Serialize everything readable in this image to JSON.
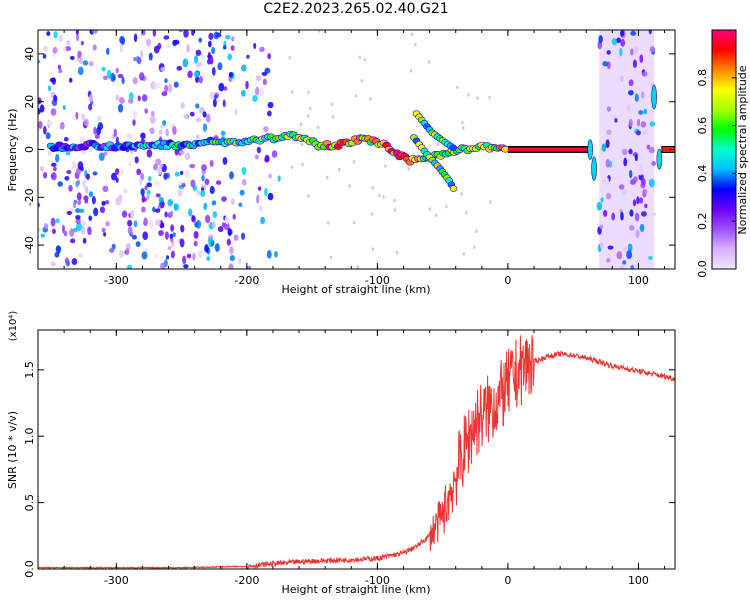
{
  "title": "C2E2.2023.265.02.40.G21",
  "chart_data": [
    {
      "type": "heatmap",
      "xlabel": "Height of straight line (km)",
      "ylabel": "Frequency (Hz)",
      "xlim": [
        -360,
        128
      ],
      "ylim": [
        -50,
        50
      ],
      "xticks": [
        -300,
        -200,
        -100,
        0,
        100
      ],
      "yticks": [
        -40,
        -20,
        0,
        20,
        40
      ],
      "colorbar": {
        "label": "Normalized spectral amplitude",
        "range": [
          0.0,
          1.0
        ],
        "ticks": [
          0.0,
          0.2,
          0.4,
          0.6,
          0.8
        ],
        "colors": [
          "#f0e6ff",
          "#d8b0ff",
          "#a050ff",
          "#6a00ff",
          "#0000ff",
          "#00bfff",
          "#00ffcc",
          "#00ff00",
          "#aaff00",
          "#ffff00",
          "#ff8800",
          "#ff0000",
          "#ff0080"
        ]
      },
      "main_trace": [
        {
          "x": -350,
          "y": 1,
          "a": 0.35
        },
        {
          "x": -320,
          "y": 2,
          "a": 0.3
        },
        {
          "x": -290,
          "y": 1,
          "a": 0.35
        },
        {
          "x": -270,
          "y": 2,
          "a": 0.4
        },
        {
          "x": -250,
          "y": 2,
          "a": 0.45
        },
        {
          "x": -230,
          "y": 3,
          "a": 0.5
        },
        {
          "x": -210,
          "y": 3,
          "a": 0.55
        },
        {
          "x": -190,
          "y": 4,
          "a": 0.55
        },
        {
          "x": -175,
          "y": 5,
          "a": 0.6
        },
        {
          "x": -160,
          "y": 6,
          "a": 0.65
        },
        {
          "x": -145,
          "y": 2,
          "a": 0.7
        },
        {
          "x": -130,
          "y": 2,
          "a": 0.8
        },
        {
          "x": -115,
          "y": 4,
          "a": 0.75
        },
        {
          "x": -105,
          "y": 4,
          "a": 0.7
        },
        {
          "x": -95,
          "y": 2,
          "a": 0.75
        },
        {
          "x": -85,
          "y": -2,
          "a": 0.85
        },
        {
          "x": -75,
          "y": -5,
          "a": 0.9
        },
        {
          "x": -60,
          "y": -3,
          "a": 0.6
        },
        {
          "x": -45,
          "y": -1,
          "a": 0.55
        },
        {
          "x": -35,
          "y": 0,
          "a": 0.6
        },
        {
          "x": -20,
          "y": 1,
          "a": 0.65
        },
        {
          "x": -10,
          "y": 1,
          "a": 0.7
        },
        {
          "x": 0,
          "y": 0,
          "a": 0.75
        }
      ],
      "branch_traces": [
        [
          {
            "x": -72,
            "y": 5
          },
          {
            "x": -62,
            "y": -2
          },
          {
            "x": -52,
            "y": -8
          },
          {
            "x": -45,
            "y": -13
          },
          {
            "x": -40,
            "y": -18
          }
        ],
        [
          {
            "x": -70,
            "y": 15
          },
          {
            "x": -58,
            "y": 7
          },
          {
            "x": -48,
            "y": 3
          },
          {
            "x": -40,
            "y": 0
          }
        ]
      ],
      "steady_line": {
        "x_start": 0,
        "x_end": 63,
        "y": 0,
        "a": 0.95
      },
      "noise_regions": [
        [
          -360,
          -210
        ],
        [
          -210,
          -175
        ],
        [
          70,
          112
        ]
      ]
    },
    {
      "type": "line",
      "xlabel": "Height of straight line (km)",
      "ylabel": "SNR (10 * v/v)",
      "y_scale_label": "(x10⁴)",
      "xlim": [
        -360,
        128
      ],
      "ylim": [
        0.0,
        1.8
      ],
      "xticks": [
        -300,
        -200,
        -100,
        0,
        100
      ],
      "yticks": [
        0.0,
        0.5,
        1.0,
        1.5
      ],
      "color": "#ee3333",
      "x": [
        -360,
        -300,
        -250,
        -200,
        -180,
        -150,
        -120,
        -100,
        -80,
        -70,
        -60,
        -50,
        -45,
        -40,
        -35,
        -30,
        -25,
        -20,
        -15,
        -10,
        -5,
        0,
        5,
        10,
        15,
        20,
        25,
        30,
        40,
        50,
        60,
        70,
        80,
        90,
        100,
        110,
        120,
        128
      ],
      "y": [
        0.01,
        0.01,
        0.01,
        0.02,
        0.04,
        0.06,
        0.07,
        0.08,
        0.12,
        0.17,
        0.25,
        0.4,
        0.55,
        0.7,
        0.85,
        0.98,
        1.1,
        1.15,
        1.2,
        1.25,
        1.3,
        1.38,
        1.45,
        1.5,
        1.55,
        1.56,
        1.58,
        1.6,
        1.62,
        1.61,
        1.59,
        1.56,
        1.53,
        1.51,
        1.49,
        1.47,
        1.45,
        1.43
      ]
    }
  ]
}
